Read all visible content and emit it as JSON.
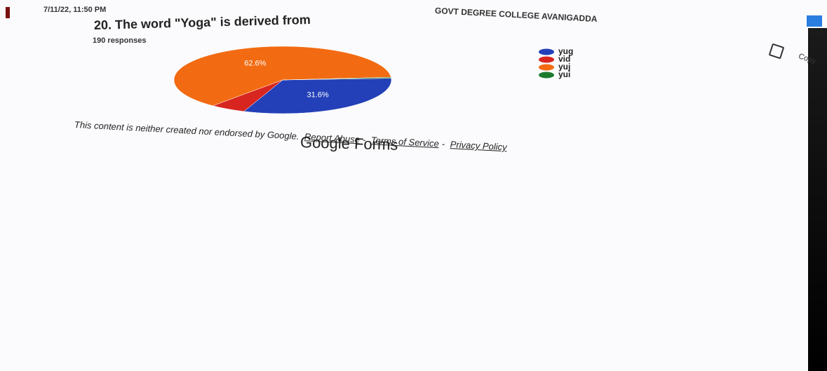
{
  "header": {
    "timestamp": "7/11/22, 11:50 PM",
    "college": "GOVT DEGREE COLLEGE AVANIGADDA"
  },
  "chart_data": {
    "type": "pie",
    "title": "20. The word \"Yoga\" is derived from",
    "subtitle": "190 responses",
    "categories": [
      "yug",
      "vid",
      "yuj",
      "yui"
    ],
    "values": [
      31.6,
      5.3,
      62.6,
      0.5
    ],
    "value_labels": [
      "31.6%",
      null,
      "62.6%",
      null
    ],
    "colors": [
      "#2340b8",
      "#d8251f",
      "#f26b12",
      "#1e7a2c"
    ],
    "legend": "right"
  },
  "copy_button": "Copy",
  "footer": {
    "disclaimer": "This content is neither created nor endorsed by Google.",
    "links": [
      "Report Abuse",
      "Terms of Service",
      "Privacy Policy"
    ],
    "separator": "-",
    "brand": "Google Forms"
  }
}
